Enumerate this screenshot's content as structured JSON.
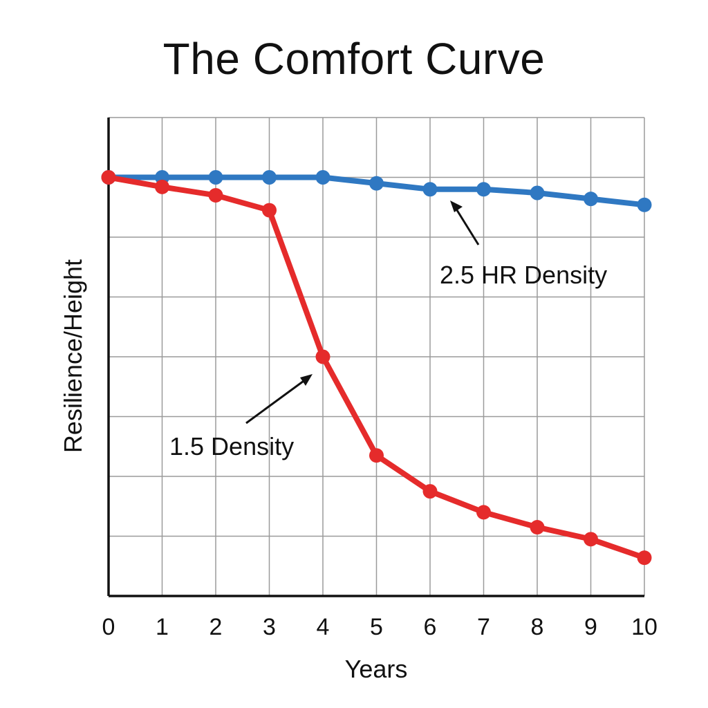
{
  "chart_data": {
    "type": "line",
    "title": "The Comfort Curve",
    "xlabel": "Years",
    "ylabel": "Resilience/Height",
    "x": [
      0,
      1,
      2,
      3,
      4,
      5,
      6,
      7,
      8,
      9,
      10
    ],
    "xlim": [
      0,
      10
    ],
    "ylim": [
      0,
      8
    ],
    "y_tick_labels_shown": false,
    "grid": true,
    "legend": "none",
    "series": [
      {
        "name": "2.5 HR Density",
        "color": "#2f78c2",
        "values": [
          7.0,
          7.0,
          7.0,
          7.0,
          7.0,
          6.9,
          6.8,
          6.8,
          6.74,
          6.64,
          6.54
        ]
      },
      {
        "name": "1.5 Density",
        "color": "#e52b2b",
        "values": [
          7.0,
          6.84,
          6.7,
          6.45,
          4.0,
          2.35,
          1.75,
          1.4,
          1.15,
          0.95,
          0.64
        ]
      }
    ],
    "annotations": [
      {
        "text": "2.5 HR Density",
        "points_to": {
          "series": "2.5 HR Density",
          "x": 6.35
        }
      },
      {
        "text": "1.5 Density",
        "points_to": {
          "series": "1.5 Density",
          "x": 3.9
        }
      }
    ]
  }
}
